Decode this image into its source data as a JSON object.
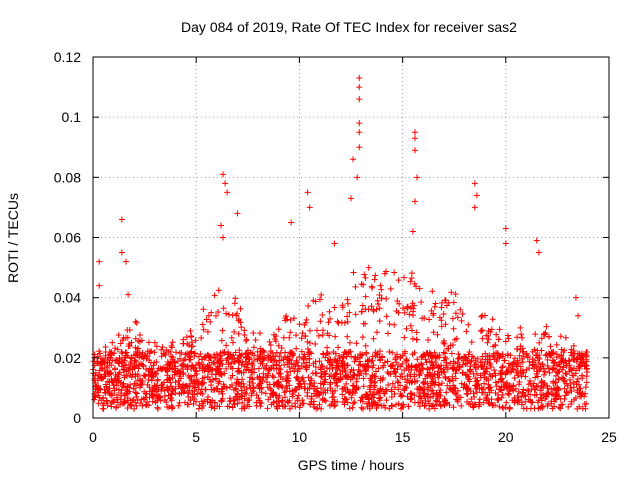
{
  "chart_data": {
    "type": "scatter",
    "title": "Day 084 of 2019, Rate Of TEC Index for receiver sas2",
    "xlabel": "GPS time / hours",
    "ylabel": "ROTI / TECUs",
    "xlim": [
      0,
      25
    ],
    "ylim": [
      0,
      0.12
    ],
    "xticks": [
      0,
      5,
      10,
      15,
      20,
      25
    ],
    "xtick_labels": [
      "0",
      "5",
      "10",
      "15",
      "20",
      "25"
    ],
    "yticks": [
      0,
      0.02,
      0.04,
      0.06,
      0.08,
      0.1,
      0.12
    ],
    "ytick_labels": [
      "0",
      "0.02",
      "0.04",
      "0.06",
      "0.08",
      "0.1",
      "0.12"
    ],
    "grid": true,
    "marker": "+",
    "color": "#ff0000",
    "series": [
      {
        "name": "ROTI",
        "notable_points": [
          {
            "x": 0.3,
            "y": 0.052
          },
          {
            "x": 0.3,
            "y": 0.044
          },
          {
            "x": 1.4,
            "y": 0.066
          },
          {
            "x": 1.4,
            "y": 0.055
          },
          {
            "x": 1.6,
            "y": 0.052
          },
          {
            "x": 1.7,
            "y": 0.041
          },
          {
            "x": 6.3,
            "y": 0.081
          },
          {
            "x": 6.4,
            "y": 0.078
          },
          {
            "x": 6.5,
            "y": 0.075
          },
          {
            "x": 6.2,
            "y": 0.064
          },
          {
            "x": 6.3,
            "y": 0.06
          },
          {
            "x": 7.0,
            "y": 0.068
          },
          {
            "x": 9.6,
            "y": 0.065
          },
          {
            "x": 10.4,
            "y": 0.075
          },
          {
            "x": 10.5,
            "y": 0.07
          },
          {
            "x": 11.7,
            "y": 0.058
          },
          {
            "x": 12.5,
            "y": 0.073
          },
          {
            "x": 12.9,
            "y": 0.113
          },
          {
            "x": 12.9,
            "y": 0.11
          },
          {
            "x": 12.9,
            "y": 0.106
          },
          {
            "x": 12.9,
            "y": 0.098
          },
          {
            "x": 12.9,
            "y": 0.095
          },
          {
            "x": 12.9,
            "y": 0.09
          },
          {
            "x": 12.6,
            "y": 0.086
          },
          {
            "x": 12.8,
            "y": 0.08
          },
          {
            "x": 15.6,
            "y": 0.095
          },
          {
            "x": 15.6,
            "y": 0.093
          },
          {
            "x": 15.6,
            "y": 0.089
          },
          {
            "x": 15.7,
            "y": 0.08
          },
          {
            "x": 15.6,
            "y": 0.072
          },
          {
            "x": 15.5,
            "y": 0.062
          },
          {
            "x": 18.5,
            "y": 0.078
          },
          {
            "x": 18.6,
            "y": 0.074
          },
          {
            "x": 18.5,
            "y": 0.07
          },
          {
            "x": 20.0,
            "y": 0.063
          },
          {
            "x": 20.0,
            "y": 0.058
          },
          {
            "x": 21.5,
            "y": 0.059
          },
          {
            "x": 21.6,
            "y": 0.055
          },
          {
            "x": 23.4,
            "y": 0.04
          },
          {
            "x": 23.5,
            "y": 0.034
          }
        ],
        "bulk_range_y": [
          0.003,
          0.03
        ],
        "activity_profile_hours": [
          0,
          1.5,
          4,
          6.3,
          8,
          10,
          12.9,
          15.5,
          17.8,
          18.5,
          20,
          21.5,
          24
        ],
        "activity_profile_level": [
          0.02,
          0.03,
          0.022,
          0.04,
          0.025,
          0.032,
          0.045,
          0.042,
          0.038,
          0.035,
          0.024,
          0.03,
          0.02
        ]
      }
    ]
  }
}
